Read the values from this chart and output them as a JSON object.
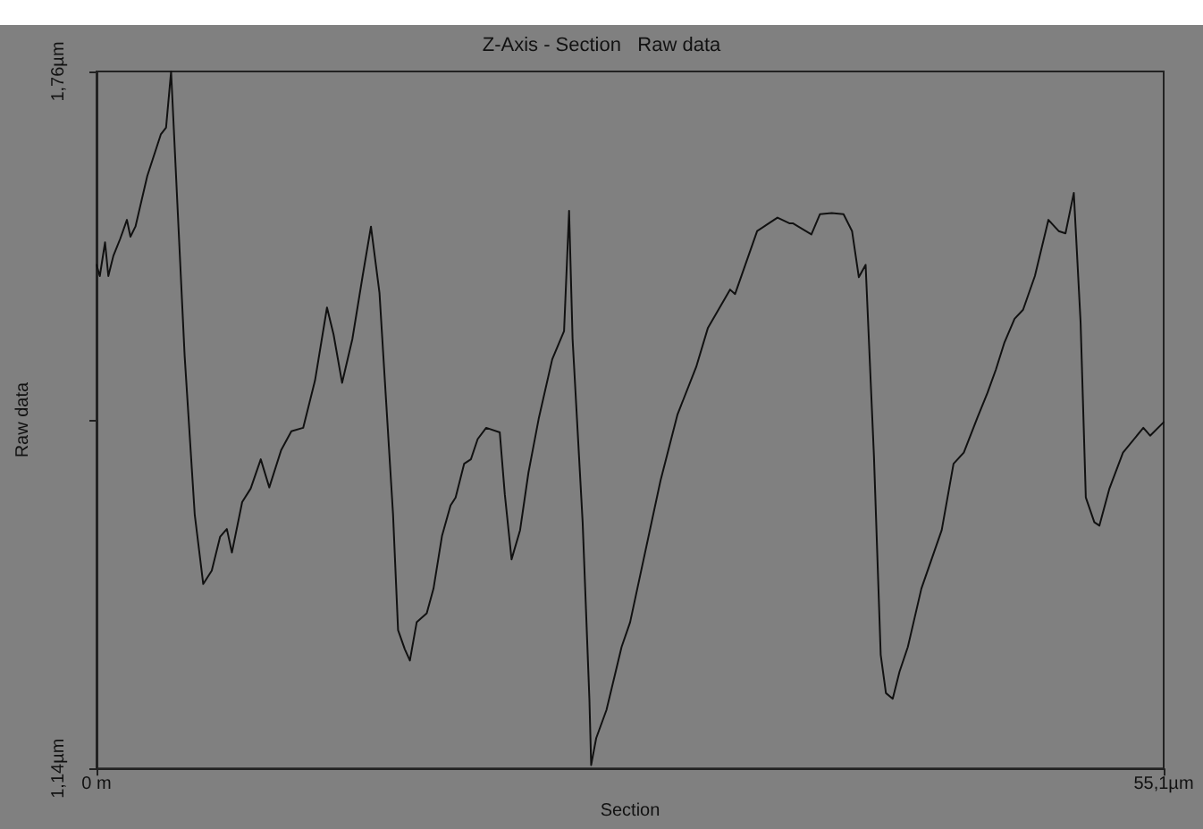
{
  "chart_data": {
    "type": "line",
    "title": "Z-Axis - Section   Raw data",
    "xlabel": "Section",
    "ylabel": "Raw data",
    "xlim": [
      0,
      55.1
    ],
    "xticks": [
      {
        "value": 0,
        "label": "0 m"
      },
      {
        "value": 55.1,
        "label": "55,1µm"
      }
    ],
    "ylim": [
      1.14,
      1.76
    ],
    "yticks": [
      {
        "value": 1.14,
        "label": "1,14µm"
      },
      {
        "value": 1.45,
        "label": null
      },
      {
        "value": 1.76,
        "label": "1,76µm"
      }
    ],
    "grid": false,
    "marker": "none",
    "line_style": "solid",
    "series": [
      {
        "color": "#111111",
        "x": [
          0,
          0.17,
          0.44,
          0.61,
          0.87,
          1.22,
          1.57,
          1.75,
          2.01,
          2.62,
          3.32,
          3.59,
          3.85,
          4.2,
          4.55,
          5.07,
          5.51,
          5.95,
          6.38,
          6.73,
          6.99,
          7.52,
          7.96,
          8.48,
          8.92,
          9.53,
          10.06,
          10.67,
          11.28,
          11.9,
          12.24,
          12.68,
          13.21,
          13.73,
          14.17,
          14.61,
          15.31,
          15.57,
          15.92,
          16.18,
          16.53,
          17.05,
          17.4,
          17.84,
          18.28,
          18.54,
          18.98,
          19.33,
          19.68,
          20.12,
          20.82,
          21.08,
          21.43,
          21.87,
          22.3,
          22.83,
          23.53,
          24.14,
          24.4,
          24.58,
          25.1,
          25.45,
          25.54,
          25.8,
          26.33,
          27.11,
          27.55,
          29.12,
          30.0,
          30.96,
          31.57,
          32.71,
          32.97,
          34.11,
          34.72,
          35.16,
          35.77,
          35.95,
          36.91,
          37.35,
          37.96,
          38.57,
          39.01,
          39.36,
          39.71,
          40.14,
          40.49,
          40.76,
          41.11,
          41.46,
          41.89,
          42.59,
          43.64,
          44.25,
          44.78,
          45.48,
          46.0,
          46.44,
          46.88,
          47.4,
          47.84,
          48.45,
          49.15,
          49.68,
          50.03,
          50.46,
          50.81,
          51.08,
          51.52,
          51.78,
          52.3,
          53.0,
          54.05,
          54.4,
          55.1
        ],
        "values": [
          1.588,
          1.578,
          1.608,
          1.578,
          1.596,
          1.611,
          1.628,
          1.613,
          1.622,
          1.667,
          1.704,
          1.71,
          1.76,
          1.633,
          1.507,
          1.366,
          1.304,
          1.316,
          1.346,
          1.353,
          1.332,
          1.377,
          1.389,
          1.415,
          1.39,
          1.423,
          1.44,
          1.443,
          1.485,
          1.55,
          1.526,
          1.483,
          1.522,
          1.577,
          1.622,
          1.563,
          1.366,
          1.263,
          1.246,
          1.236,
          1.27,
          1.278,
          1.3,
          1.347,
          1.374,
          1.381,
          1.411,
          1.415,
          1.433,
          1.443,
          1.439,
          1.384,
          1.326,
          1.352,
          1.403,
          1.451,
          1.504,
          1.529,
          1.636,
          1.522,
          1.359,
          1.201,
          1.143,
          1.167,
          1.192,
          1.248,
          1.27,
          1.396,
          1.455,
          1.497,
          1.532,
          1.566,
          1.562,
          1.618,
          1.625,
          1.63,
          1.625,
          1.625,
          1.615,
          1.633,
          1.634,
          1.633,
          1.618,
          1.577,
          1.588,
          1.418,
          1.241,
          1.207,
          1.202,
          1.226,
          1.248,
          1.3,
          1.352,
          1.411,
          1.421,
          1.452,
          1.474,
          1.495,
          1.519,
          1.54,
          1.548,
          1.578,
          1.628,
          1.618,
          1.616,
          1.652,
          1.537,
          1.381,
          1.359,
          1.356,
          1.389,
          1.421,
          1.443,
          1.436,
          1.448
        ]
      }
    ]
  }
}
